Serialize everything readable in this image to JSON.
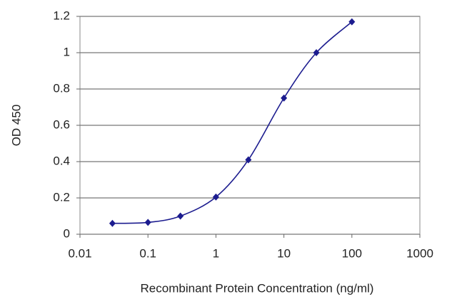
{
  "chart_data": {
    "type": "line",
    "x_label": "Recombinant Protein Concentration (ng/ml)",
    "y_label": "OD 450",
    "x": [
      0.03,
      0.1,
      0.3,
      1,
      3,
      10,
      30,
      100
    ],
    "series": [
      {
        "color": "#1c1c8f",
        "values": [
          0.06,
          0.065,
          0.1,
          0.205,
          0.41,
          0.75,
          1.0,
          1.17
        ]
      }
    ],
    "xscale": "log",
    "xlim": [
      0.01,
      1000
    ],
    "xticks": [
      0.01,
      0.1,
      1,
      10,
      100,
      1000
    ],
    "ylim": [
      0,
      1.2
    ],
    "yticks": [
      0,
      0.2,
      0.4,
      0.6,
      0.8,
      1,
      1.2
    ],
    "grid": true
  }
}
